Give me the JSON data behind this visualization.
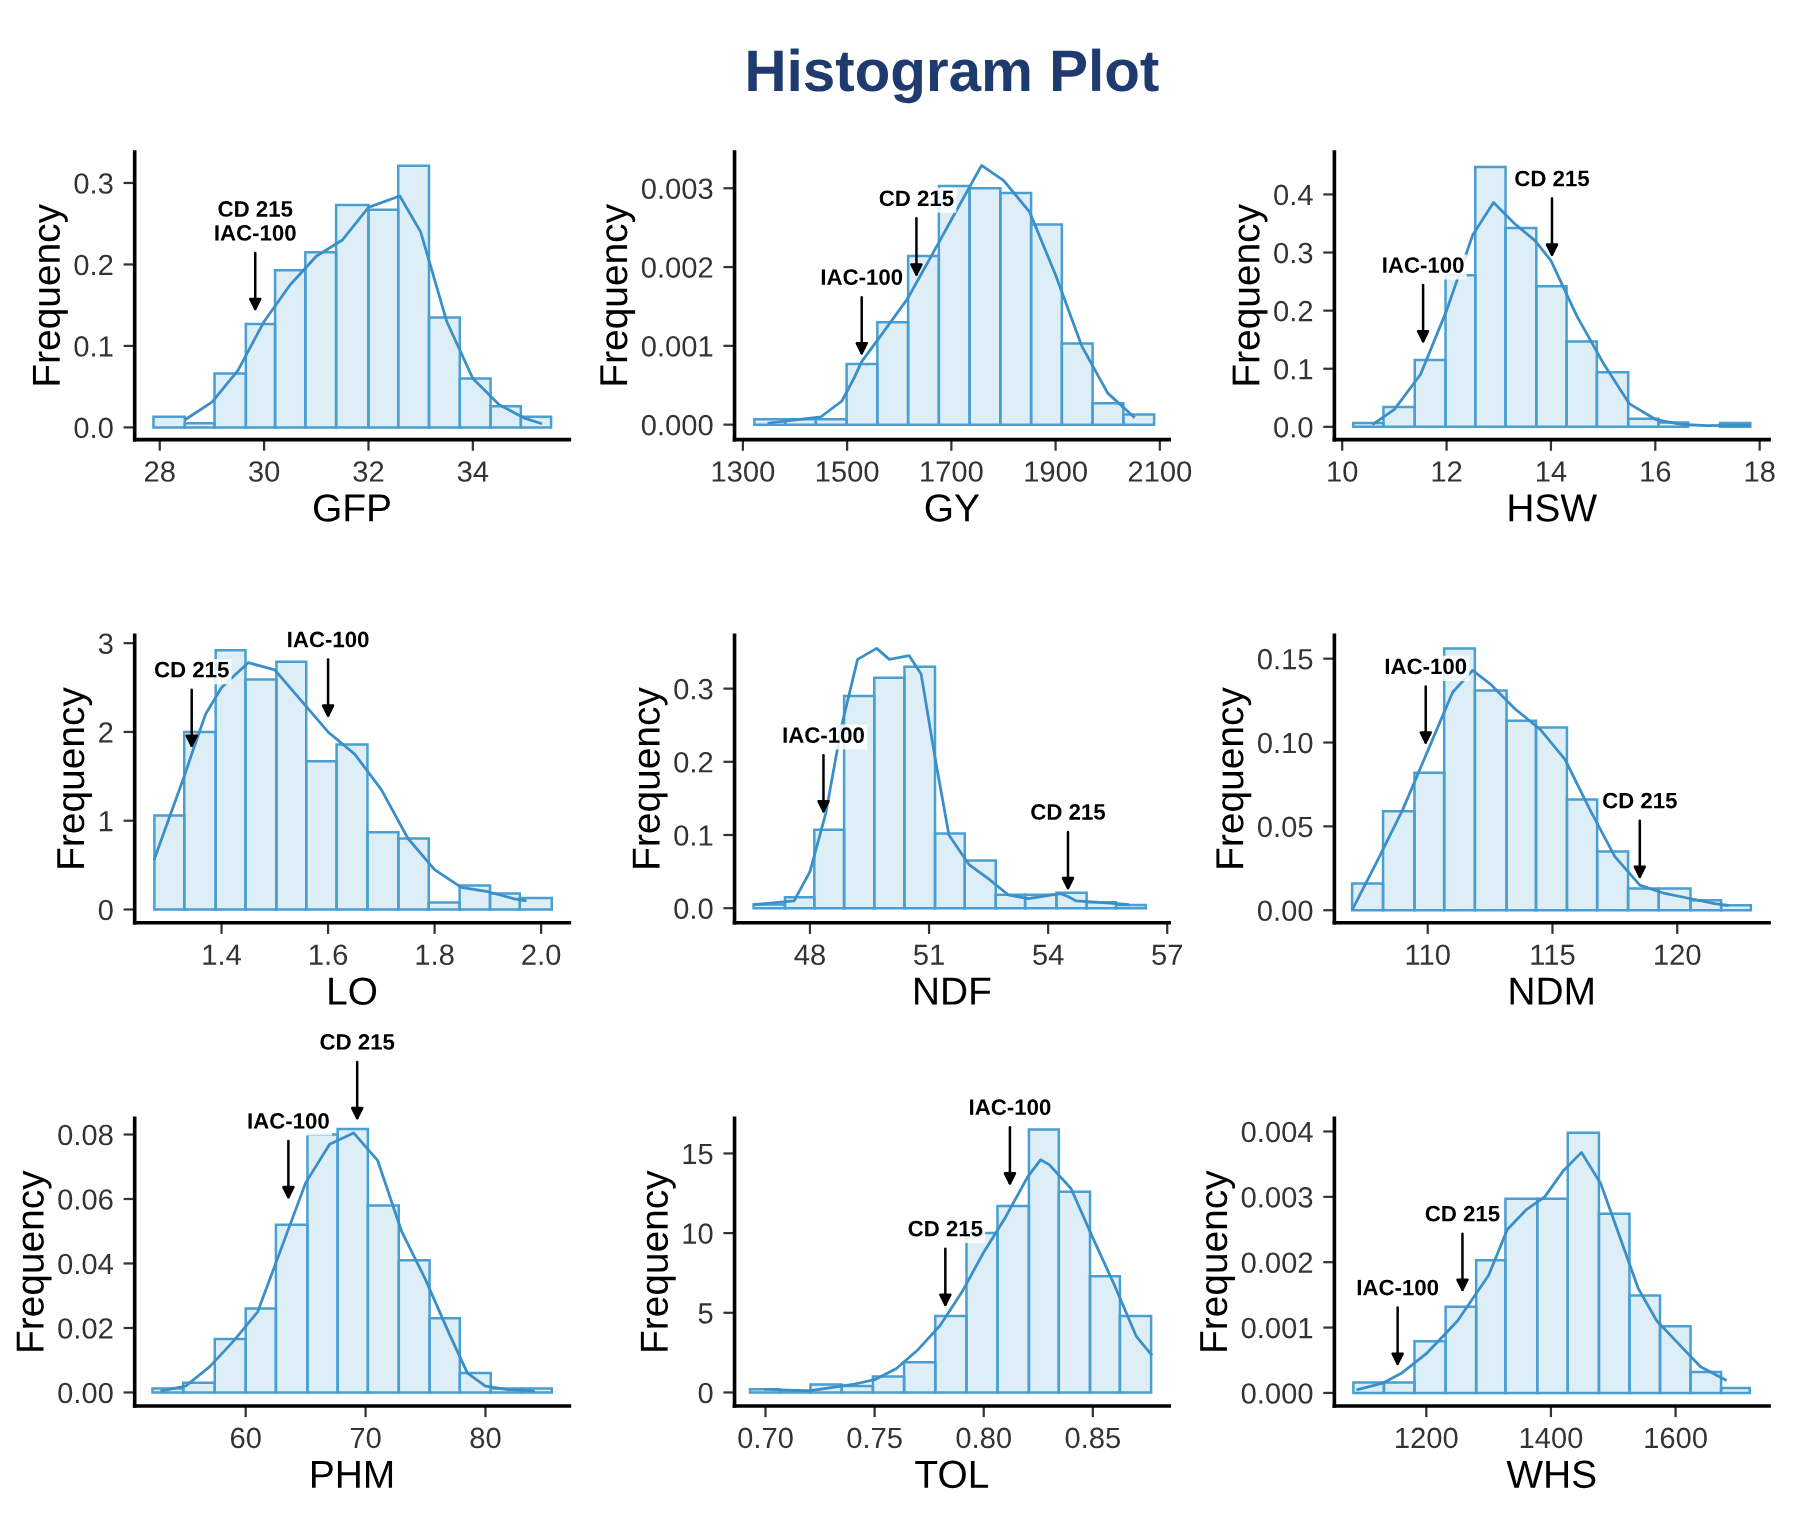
{
  "chart_data": [
    {
      "type": "histogram",
      "xlabel": "GFP",
      "ylabel": "Frequency",
      "color": "#4a9fd0",
      "grid": false,
      "legend": false,
      "bins": [
        27.88,
        28.48,
        29.05,
        29.65,
        30.21,
        30.79,
        31.38,
        32.0,
        32.57,
        33.16,
        33.75,
        34.34,
        34.92,
        35.5
      ],
      "values": [
        0.013,
        0.005,
        0.066,
        0.127,
        0.193,
        0.215,
        0.273,
        0.267,
        0.321,
        0.135,
        0.06,
        0.026,
        0.013
      ],
      "series": [
        {
          "type": "line",
          "color": "#3a8fc8",
          "x": [
            28.5,
            29.0,
            29.5,
            30.0,
            30.5,
            31.0,
            31.5,
            32.0,
            32.6,
            33.0,
            33.5,
            34.0,
            34.5,
            35.0,
            35.3
          ],
          "values": [
            0.01,
            0.031,
            0.07,
            0.13,
            0.175,
            0.21,
            0.23,
            0.27,
            0.284,
            0.24,
            0.13,
            0.06,
            0.028,
            0.011,
            0.005
          ]
        }
      ],
      "xlim": [
        27.52,
        35.85
      ],
      "ylim": [
        -0.015,
        0.338
      ],
      "xticks": [
        28,
        30,
        32,
        34
      ],
      "yticks": [
        {
          "value": 0,
          "label": "0.0"
        },
        0.1,
        0.2,
        0.3
      ],
      "annotations": [
        {
          "text": "CD 215\nIAC-100",
          "x": 29.83,
          "y": 0.135
        }
      ]
    },
    {
      "type": "histogram",
      "title": "Histogram Plot",
      "xlabel": "GY",
      "ylabel": "Frequency",
      "color": "#4a9fd0",
      "grid": false,
      "legend": false,
      "bins": [
        1322,
        1381,
        1440,
        1499,
        1558,
        1617,
        1676,
        1735,
        1794,
        1853,
        1912,
        1971,
        2030,
        2089
      ],
      "values": [
        7e-05,
        7e-05,
        7e-05,
        0.00077,
        0.0013,
        0.00214,
        0.00303,
        0.003,
        0.00294,
        0.00254,
        0.00103,
        0.00027,
        0.00013
      ],
      "series": [
        {
          "type": "line",
          "color": "#3a8fc8",
          "x": [
            1350,
            1450,
            1490,
            1514,
            1528,
            1558,
            1616,
            1633,
            1675,
            1700,
            1758,
            1800,
            1850,
            1900,
            1950,
            2000,
            2050
          ],
          "values": [
            2e-05,
            0.0001,
            0.0003,
            0.0006,
            0.0008,
            0.00107,
            0.0016,
            0.0018,
            0.0023,
            0.0026,
            0.00329,
            0.0031,
            0.0027,
            0.0019,
            0.001,
            0.0004,
            0.0001
          ]
        }
      ],
      "xlim": [
        1284,
        2118
      ],
      "ylim": [
        -0.00019,
        0.00346
      ],
      "xticks": [
        1300,
        1500,
        1700,
        1900,
        2100
      ],
      "yticks": [
        {
          "value": 0,
          "label": "0.000"
        },
        {
          "value": 0.001,
          "label": "0.001"
        },
        {
          "value": 0.002,
          "label": "0.002"
        },
        {
          "value": 0.003,
          "label": "0.003"
        }
      ],
      "annotations": [
        {
          "text": "IAC-100",
          "x": 1528,
          "y": 0.0008
        },
        {
          "text": "CD 215",
          "x": 1633,
          "y": 0.0018
        }
      ]
    },
    {
      "type": "histogram",
      "xlabel": "HSW",
      "ylabel": "Frequency",
      "color": "#4a9fd0",
      "grid": false,
      "legend": false,
      "bins": [
        10.21,
        10.79,
        11.39,
        11.98,
        12.55,
        13.13,
        13.72,
        14.3,
        14.88,
        15.48,
        16.06,
        16.63,
        17.24,
        17.82
      ],
      "values": [
        0.0065,
        0.034,
        0.115,
        0.261,
        0.447,
        0.342,
        0.242,
        0.147,
        0.094,
        0.014,
        0.0074,
        null,
        0.0065
      ],
      "series": [
        {
          "type": "line",
          "color": "#3a8fc8",
          "x": [
            10.6,
            11.0,
            11.5,
            12.0,
            12.5,
            12.9,
            13.3,
            13.7,
            14.0,
            14.5,
            15.0,
            15.5,
            16.0,
            16.5,
            17.0,
            17.8
          ],
          "values": [
            0.005,
            0.03,
            0.09,
            0.2,
            0.33,
            0.386,
            0.35,
            0.32,
            0.286,
            0.19,
            0.11,
            0.04,
            0.013,
            0.004,
            0.002,
            0.003
          ]
        }
      ],
      "xlim": [
        9.85,
        18.18
      ],
      "ylim": [
        -0.022,
        0.473
      ],
      "xticks": [
        10,
        12,
        14,
        16,
        18
      ],
      "yticks": [
        {
          "value": 0,
          "label": "0.0"
        },
        0.1,
        0.2,
        0.3,
        0.4
      ],
      "annotations": [
        {
          "text": "IAC-100",
          "x": 11.55,
          "y": 0.133
        },
        {
          "text": "CD 215",
          "x": 14.02,
          "y": 0.282
        }
      ]
    },
    {
      "type": "histogram",
      "xlabel": "LO",
      "ylabel": "Frequency",
      "color": "#4a9fd0",
      "grid": false,
      "legend": false,
      "bins": [
        1.274,
        1.33,
        1.389,
        1.445,
        1.503,
        1.559,
        1.616,
        1.674,
        1.732,
        1.789,
        1.847,
        1.904,
        1.96,
        2.02
      ],
      "values": [
        1.06,
        2.0,
        2.92,
        2.59,
        2.79,
        1.67,
        1.86,
        0.87,
        0.8,
        0.08,
        0.27,
        0.18,
        0.13
      ],
      "series": [
        {
          "type": "line",
          "color": "#3a8fc8",
          "x": [
            1.274,
            1.33,
            1.344,
            1.37,
            1.4,
            1.45,
            1.5,
            1.55,
            1.6,
            1.65,
            1.7,
            1.75,
            1.8,
            1.85,
            1.9,
            1.95,
            1.97
          ],
          "values": [
            0.57,
            1.5,
            1.75,
            2.2,
            2.5,
            2.78,
            2.7,
            2.35,
            2.0,
            1.75,
            1.35,
            0.8,
            0.45,
            0.25,
            0.2,
            0.12,
            0.1
          ]
        }
      ],
      "xlim": [
        1.237,
        2.053
      ],
      "ylim": [
        -0.15,
        3.09
      ],
      "xticks": [
        1.4,
        1.6,
        1.8,
        {
          "value": 2.0,
          "label": "2.0"
        }
      ],
      "yticks": [
        0,
        1,
        2,
        3
      ],
      "annotations": [
        {
          "text": "CD 215",
          "x": 1.344,
          "y": 1.75
        },
        {
          "text": "IAC-100",
          "x": 1.6,
          "y": 2.09
        }
      ]
    },
    {
      "type": "histogram",
      "xlabel": "NDF",
      "ylabel": "Frequency",
      "color": "#4a9fd0",
      "grid": false,
      "legend": false,
      "bins": [
        46.58,
        47.37,
        48.11,
        48.86,
        49.62,
        50.38,
        51.15,
        51.9,
        52.68,
        53.42,
        54.21,
        54.97,
        55.71,
        56.46
      ],
      "values": [
        0.005,
        0.015,
        0.107,
        0.29,
        0.315,
        0.33,
        0.102,
        0.065,
        0.0185,
        0.0185,
        0.021,
        0.008,
        0.0044
      ],
      "series": [
        {
          "type": "line",
          "color": "#3a8fc8",
          "x": [
            46.6,
            47.6,
            48.0,
            48.4,
            48.8,
            49.2,
            49.68,
            50.0,
            50.5,
            50.8,
            51.15,
            51.5,
            52.0,
            52.5,
            53.0,
            53.5,
            54.3,
            54.5,
            54.7,
            55.3,
            56.0
          ],
          "values": [
            0.005,
            0.01,
            0.05,
            0.13,
            0.25,
            0.34,
            0.355,
            0.34,
            0.345,
            0.32,
            0.206,
            0.1,
            0.06,
            0.04,
            0.018,
            0.013,
            0.02,
            0.016,
            0.01,
            0.008,
            0.005
          ]
        }
      ],
      "xlim": [
        46.1,
        57.05
      ],
      "ylim": [
        -0.02,
        0.373
      ],
      "xticks": [
        48,
        51,
        54,
        57
      ],
      "yticks": [
        {
          "value": 0,
          "label": "0.0"
        },
        0.1,
        0.2,
        0.3
      ],
      "annotations": [
        {
          "text": "IAC-100",
          "x": 48.34,
          "y": 0.121
        },
        {
          "text": "CD 215",
          "x": 54.5,
          "y": 0.016
        }
      ]
    },
    {
      "type": "histogram",
      "xlabel": "NDM",
      "ylabel": "Frequency",
      "color": "#4a9fd0",
      "grid": false,
      "legend": false,
      "bins": [
        106.97,
        108.21,
        109.47,
        110.66,
        111.89,
        113.16,
        114.34,
        115.58,
        116.79,
        118.03,
        119.26,
        120.53,
        121.76,
        122.95
      ],
      "values": [
        0.016,
        0.059,
        0.082,
        0.156,
        0.131,
        0.113,
        0.109,
        0.066,
        0.035,
        0.013,
        0.013,
        0.006,
        0.003
      ],
      "series": [
        {
          "type": "line",
          "color": "#3a8fc8",
          "x": [
            107,
            108,
            109,
            110,
            111,
            111.8,
            112.5,
            113.5,
            114.5,
            115.5,
            116.5,
            117.5,
            118.5,
            119.5,
            120.5,
            121.5,
            122
          ],
          "values": [
            0.001,
            0.03,
            0.06,
            0.095,
            0.13,
            0.143,
            0.135,
            0.12,
            0.108,
            0.09,
            0.06,
            0.032,
            0.015,
            0.01,
            0.007,
            0.004,
            0.003
          ]
        }
      ],
      "xlim": [
        106.26,
        123.68
      ],
      "ylim": [
        -0.0075,
        0.164
      ],
      "xticks": [
        110,
        115,
        120
      ],
      "yticks": [
        {
          "value": 0,
          "label": "0.00"
        },
        {
          "value": 0.05,
          "label": "0.05"
        },
        {
          "value": 0.1,
          "label": "0.10"
        },
        {
          "value": 0.15,
          "label": "0.15"
        }
      ],
      "annotations": [
        {
          "text": "IAC-100",
          "x": 109.92,
          "y": 0.095
        },
        {
          "text": "CD 215",
          "x": 118.5,
          "y": 0.015
        }
      ]
    },
    {
      "type": "histogram",
      "xlabel": "PHM",
      "ylabel": "Frequency",
      "color": "#4a9fd0",
      "grid": false,
      "legend": false,
      "bins": [
        52.22,
        54.79,
        57.42,
        60.0,
        62.52,
        65.15,
        67.67,
        70.19,
        72.77,
        75.34,
        77.86,
        80.44,
        83.01,
        85.53
      ],
      "values": [
        0.0012,
        0.003,
        0.0166,
        0.026,
        0.052,
        0.08,
        0.0817,
        0.058,
        0.041,
        0.023,
        0.006,
        0.0012,
        0.0012
      ],
      "series": [
        {
          "type": "line",
          "color": "#3a8fc8",
          "x": [
            53,
            55,
            57,
            59,
            61,
            63,
            65,
            67,
            69,
            71,
            73,
            75,
            77,
            78.5,
            80,
            82,
            84
          ],
          "values": [
            0.0005,
            0.002,
            0.008,
            0.016,
            0.025,
            0.045,
            0.065,
            0.077,
            0.0805,
            0.072,
            0.05,
            0.035,
            0.018,
            0.006,
            0.002,
            0.0008,
            0.0005
          ]
        }
      ],
      "xlim": [
        50.74,
        87.0
      ],
      "ylim": [
        -0.0042,
        0.085
      ],
      "xticks": [
        60,
        70,
        80
      ],
      "yticks": [
        {
          "value": 0,
          "label": "0.00"
        },
        {
          "value": 0.02,
          "label": "0.02"
        },
        {
          "value": 0.04,
          "label": "0.04"
        },
        {
          "value": 0.06,
          "label": "0.06"
        },
        {
          "value": 0.08,
          "label": "0.08"
        }
      ],
      "annotations": [
        {
          "text": "IAC-100",
          "x": 63.56,
          "y": 0.058
        },
        {
          "text": "CD 215",
          "x": 69.3,
          "y": 0.0825
        }
      ]
    },
    {
      "type": "histogram",
      "xlabel": "TOL",
      "ylabel": "Frequency",
      "color": "#4a9fd0",
      "grid": false,
      "legend": false,
      "bins": [
        0.6929,
        0.7063,
        0.7206,
        0.7349,
        0.7492,
        0.7635,
        0.7778,
        0.7921,
        0.8063,
        0.8207,
        0.8344,
        0.8487,
        0.8624,
        0.8767
      ],
      "values": [
        0.2,
        0.1,
        0.5,
        0.4,
        1.0,
        1.9,
        4.8,
        10.0,
        11.7,
        16.5,
        12.6,
        7.3,
        4.8
      ],
      "series": [
        {
          "type": "line",
          "color": "#3a8fc8",
          "x": [
            0.7,
            0.72,
            0.74,
            0.75,
            0.76,
            0.77,
            0.78,
            0.79,
            0.8,
            0.81,
            0.82,
            0.826,
            0.83,
            0.84,
            0.85,
            0.86,
            0.87,
            0.8767
          ],
          "values": [
            0.2,
            0.1,
            0.5,
            0.8,
            1.5,
            2.7,
            4.2,
            6.3,
            8.8,
            11.0,
            13.5,
            14.6,
            14.3,
            12.8,
            9.7,
            6.7,
            3.5,
            2.4
          ]
        }
      ],
      "xlim": [
        0.6858,
        0.885
      ],
      "ylim": [
        -0.85,
        17.2
      ],
      "xticks": [
        {
          "value": 0.7,
          "label": "0.70"
        },
        0.75,
        {
          "value": 0.8,
          "label": "0.80"
        },
        0.85
      ],
      "yticks": [
        0,
        5,
        10,
        15
      ],
      "annotations": [
        {
          "text": "IAC-100",
          "x": 0.812,
          "y": 12.6
        },
        {
          "text": "CD 215",
          "x": 0.7824,
          "y": 4.98
        }
      ]
    },
    {
      "type": "histogram",
      "xlabel": "WHS",
      "ylabel": "Frequency",
      "color": "#4a9fd0",
      "grid": false,
      "legend": false,
      "bins": [
        1083,
        1132,
        1181,
        1231,
        1280,
        1327,
        1378,
        1427,
        1477,
        1526,
        1575,
        1624,
        1673,
        1719
      ],
      "values": [
        0.00016,
        0.00016,
        0.00079,
        0.00132,
        0.00203,
        0.00297,
        0.00297,
        0.00398,
        0.00274,
        0.00149,
        0.00102,
        0.00032,
        7.5e-05
      ],
      "series": [
        {
          "type": "line",
          "color": "#3a8fc8",
          "x": [
            1090,
            1130,
            1160,
            1200,
            1250,
            1300,
            1330,
            1360,
            1390,
            1420,
            1449,
            1480,
            1510,
            1540,
            1570,
            1600,
            1640,
            1680
          ],
          "values": [
            5e-05,
            0.00015,
            0.0003,
            0.0006,
            0.0011,
            0.0018,
            0.0025,
            0.0028,
            0.003,
            0.0034,
            0.00368,
            0.0032,
            0.0024,
            0.0016,
            0.0011,
            0.0008,
            0.0004,
            0.0002
          ]
        }
      ],
      "xlim": [
        1052.5,
        1750
      ],
      "ylim": [
        -0.0002,
        0.0042
      ],
      "xticks": [
        1200,
        1400,
        1600
      ],
      "yticks": [
        {
          "value": 0,
          "label": "0.000"
        },
        {
          "value": 0.001,
          "label": "0.001"
        },
        {
          "value": 0.002,
          "label": "0.002"
        },
        {
          "value": 0.003,
          "label": "0.003"
        },
        {
          "value": 0.004,
          "label": "0.004"
        }
      ],
      "annotations": [
        {
          "text": "IAC-100",
          "x": 1154,
          "y": 0.00032
        },
        {
          "text": "CD 215",
          "x": 1258,
          "y": 0.00145
        }
      ]
    }
  ]
}
